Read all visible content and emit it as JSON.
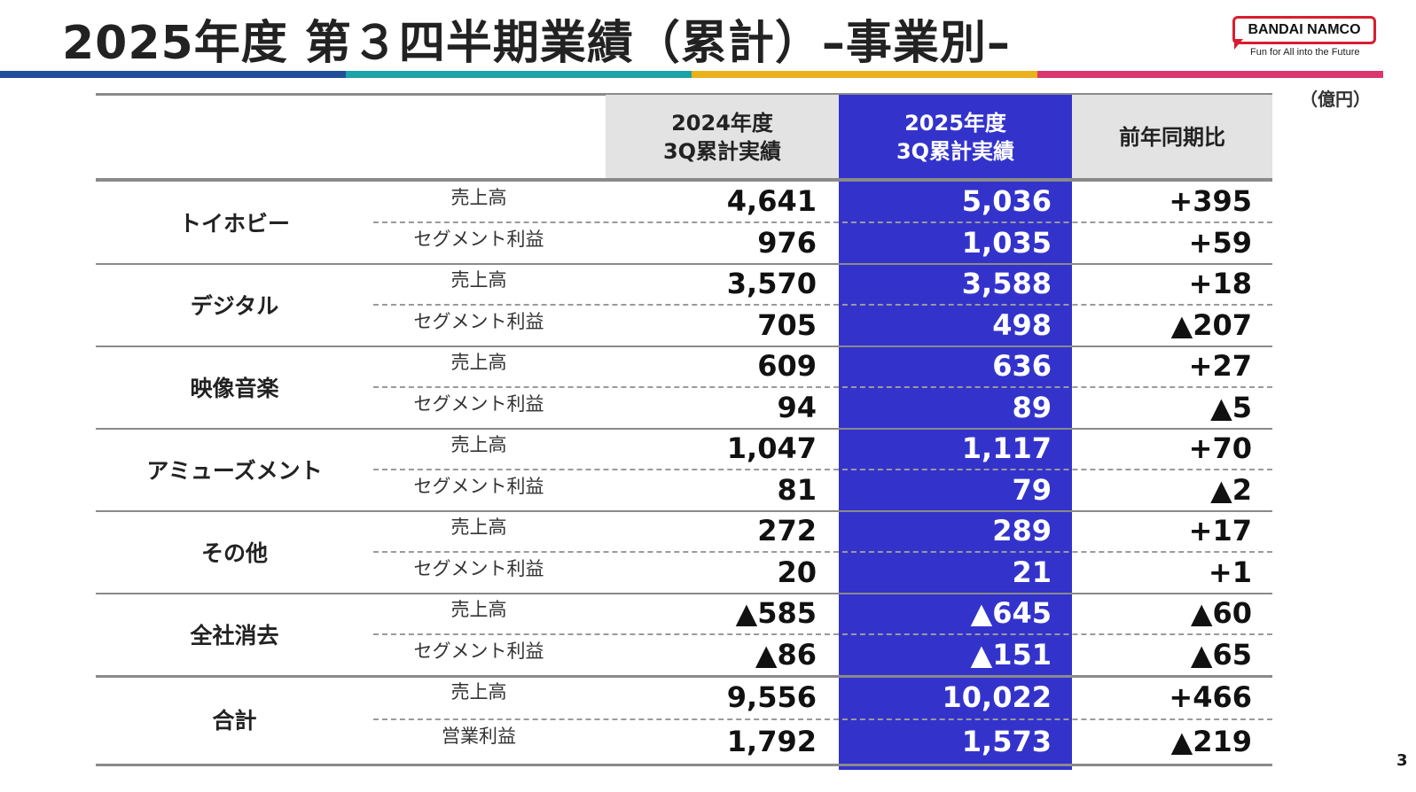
{
  "title": "2025年度 第３四半期業績（累計）–事業別–",
  "logo": {
    "brand": "BANDAI NAMCO",
    "tagline": "Fun for All into the Future",
    "accent": "#d71e2f"
  },
  "stripe_colors": [
    "#1f4f9a",
    "#1aa3a8",
    "#e9b21a",
    "#d9376e"
  ],
  "unit": "（億円）",
  "page_number": "3",
  "header": {
    "prev_line1": "2024年度",
    "prev_line2": "3Q累計実績",
    "cur_line1": "2025年度",
    "cur_line2": "3Q累計実績",
    "diff": "前年同期比"
  },
  "highlight_color": "#3333cc",
  "segments": [
    {
      "name": "トイホビー",
      "rows": [
        {
          "label": "売上高",
          "prev": "4,641",
          "cur": "5,036",
          "diff": "+395"
        },
        {
          "label": "セグメント利益",
          "prev": "976",
          "cur": "1,035",
          "diff": "+59"
        }
      ]
    },
    {
      "name": "デジタル",
      "rows": [
        {
          "label": "売上高",
          "prev": "3,570",
          "cur": "3,588",
          "diff": "+18"
        },
        {
          "label": "セグメント利益",
          "prev": "705",
          "cur": "498",
          "diff": "▲207"
        }
      ]
    },
    {
      "name": "映像音楽",
      "rows": [
        {
          "label": "売上高",
          "prev": "609",
          "cur": "636",
          "diff": "+27"
        },
        {
          "label": "セグメント利益",
          "prev": "94",
          "cur": "89",
          "diff": "▲5"
        }
      ]
    },
    {
      "name": "アミューズメント",
      "rows": [
        {
          "label": "売上高",
          "prev": "1,047",
          "cur": "1,117",
          "diff": "+70"
        },
        {
          "label": "セグメント利益",
          "prev": "81",
          "cur": "79",
          "diff": "▲2"
        }
      ]
    },
    {
      "name": "その他",
      "rows": [
        {
          "label": "売上高",
          "prev": "272",
          "cur": "289",
          "diff": "+17"
        },
        {
          "label": "セグメント利益",
          "prev": "20",
          "cur": "21",
          "diff": "+1"
        }
      ]
    },
    {
      "name": "全社消去",
      "rows": [
        {
          "label": "売上高",
          "prev": "▲585",
          "cur": "▲645",
          "diff": "▲60"
        },
        {
          "label": "セグメント利益",
          "prev": "▲86",
          "cur": "▲151",
          "diff": "▲65"
        }
      ]
    },
    {
      "name": "合計",
      "rows": [
        {
          "label": "売上高",
          "prev": "9,556",
          "cur": "10,022",
          "diff": "+466"
        },
        {
          "label": "営業利益",
          "prev": "1,792",
          "cur": "1,573",
          "diff": "▲219"
        }
      ]
    }
  ]
}
